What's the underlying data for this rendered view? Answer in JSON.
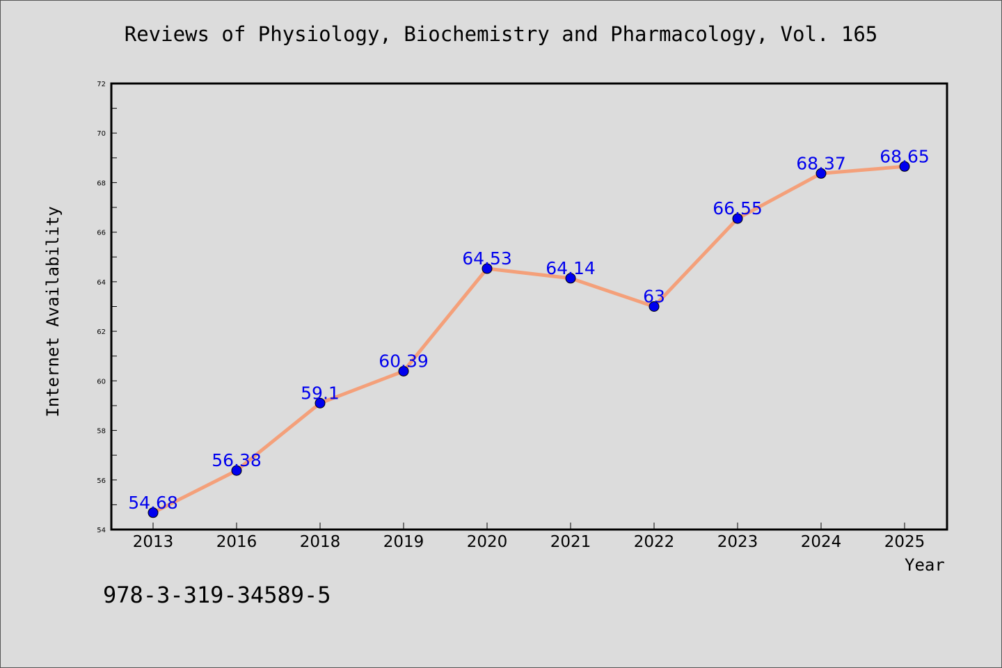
{
  "page": {
    "footnote": "978-3-319-34589-5",
    "background": "#dcdcdc"
  },
  "chart_data": {
    "type": "line",
    "title": "Reviews of Physiology, Biochemistry and Pharmacology, Vol. 165",
    "xlabel": "Year",
    "ylabel": "Internet Availability",
    "categories": [
      "2013",
      "2016",
      "2018",
      "2019",
      "2020",
      "2021",
      "2022",
      "2023",
      "2024",
      "2025"
    ],
    "series": [
      {
        "values": [
          54.68,
          56.38,
          59.1,
          60.39,
          64.53,
          64.14,
          63,
          66.55,
          68.37,
          68.65
        ],
        "data_labels": [
          "54.68",
          "56.38",
          "59.1",
          "60.39",
          "64.53",
          "64.14",
          "63",
          "66.55",
          "68.37",
          "68.65"
        ],
        "line_color": "#f4a07a",
        "marker_color": "#0000ee",
        "label_color": "#0000ee"
      }
    ],
    "ylim": [
      54,
      72
    ],
    "yticks": [
      "54",
      "56",
      "58",
      "60",
      "62",
      "64",
      "66",
      "68",
      "70",
      "72"
    ],
    "grid": false,
    "legend": "none"
  }
}
